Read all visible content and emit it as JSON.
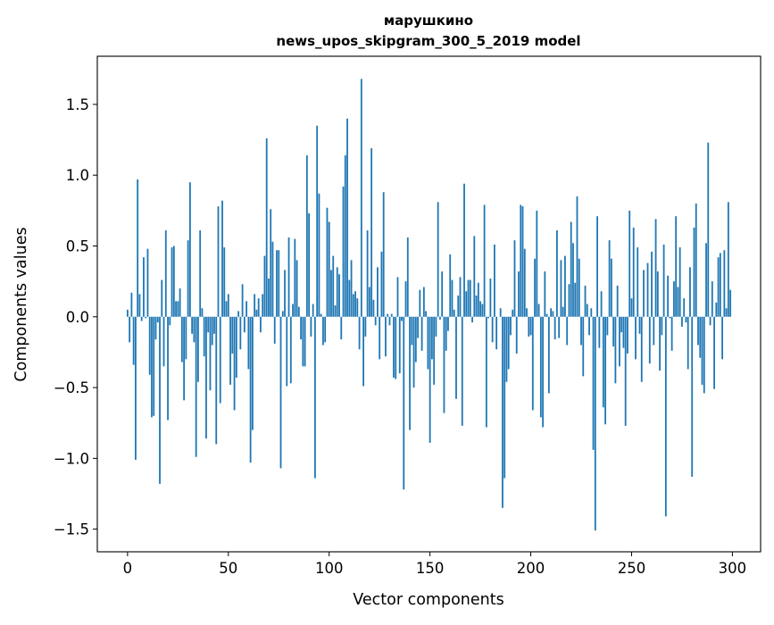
{
  "chart_data": {
    "type": "bar",
    "title": [
      "марушкино",
      "news_upos_skipgram_300_5_2019 model"
    ],
    "xlabel": "Vector components",
    "ylabel": "Components values",
    "xlim": [
      -15,
      314
    ],
    "ylim": [
      -1.66,
      1.84
    ],
    "xticks": [
      0,
      50,
      100,
      150,
      200,
      250,
      300
    ],
    "yticks": [
      -1.5,
      -1.0,
      -0.5,
      0.0,
      0.5,
      1.0,
      1.5
    ],
    "xtick_labels": [
      "0",
      "50",
      "100",
      "150",
      "200",
      "250",
      "300"
    ],
    "ytick_labels": [
      "−1.5",
      "−1.0",
      "−0.5",
      "0.0",
      "0.5",
      "1.0",
      "1.5"
    ],
    "grid": false,
    "bar_color": "#1f77b4",
    "values": [
      0.05,
      -0.18,
      0.17,
      -0.34,
      -1.01,
      0.97,
      0.16,
      -0.03,
      0.42,
      -0.01,
      0.48,
      -0.41,
      -0.71,
      -0.7,
      -0.16,
      -0.04,
      -1.18,
      0.26,
      -0.35,
      0.61,
      -0.73,
      -0.06,
      0.49,
      0.5,
      0.11,
      0.11,
      0.2,
      -0.32,
      -0.59,
      -0.3,
      0.54,
      0.95,
      -0.12,
      -0.18,
      -0.99,
      -0.46,
      0.61,
      0.06,
      -0.28,
      -0.86,
      -0.11,
      -0.52,
      -0.2,
      -0.12,
      -0.9,
      0.78,
      -0.61,
      0.82,
      0.49,
      0.11,
      0.16,
      -0.48,
      -0.26,
      -0.66,
      -0.43,
      0.04,
      -0.23,
      0.23,
      -0.11,
      0.11,
      -0.37,
      -1.03,
      -0.8,
      0.16,
      0.05,
      0.13,
      -0.11,
      0.16,
      0.43,
      1.26,
      0.27,
      0.76,
      0.53,
      -0.19,
      0.47,
      0.47,
      -1.07,
      0.04,
      0.33,
      -0.49,
      0.56,
      -0.47,
      0.09,
      0.55,
      0.4,
      0.07,
      -0.16,
      -0.35,
      -0.35,
      1.14,
      0.73,
      -0.14,
      0.09,
      -1.14,
      1.35,
      0.87,
      0.02,
      -0.2,
      -0.18,
      0.77,
      0.67,
      0.33,
      0.43,
      0.08,
      0.35,
      0.3,
      -0.16,
      0.92,
      1.14,
      1.4,
      0.26,
      0.4,
      0.16,
      0.18,
      0.13,
      -0.23,
      1.68,
      -0.49,
      -0.14,
      0.61,
      0.21,
      1.19,
      0.12,
      -0.06,
      0.35,
      -0.3,
      0.46,
      0.88,
      -0.28,
      0.02,
      -0.06,
      0.02,
      -0.43,
      -0.44,
      0.28,
      -0.4,
      -0.03,
      -1.22,
      0.25,
      0.56,
      -0.8,
      -0.2,
      -0.5,
      -0.32,
      -0.15,
      0.19,
      -0.24,
      0.21,
      0.04,
      -0.37,
      -0.89,
      -0.3,
      -0.48,
      -0.14,
      0.81,
      -0.02,
      0.32,
      -0.68,
      -0.24,
      -0.1,
      0.44,
      0.26,
      0.05,
      -0.58,
      0.15,
      0.28,
      -0.77,
      0.94,
      0.18,
      0.26,
      0.26,
      -0.04,
      0.57,
      0.15,
      0.24,
      0.11,
      0.09,
      0.79,
      -0.78,
      -0.01,
      0.27,
      -0.18,
      0.51,
      -0.23,
      0.0,
      0.06,
      -1.35,
      -1.14,
      -0.46,
      -0.37,
      -0.13,
      0.05,
      0.54,
      -0.26,
      0.32,
      0.79,
      0.78,
      0.48,
      0.06,
      -0.14,
      -0.13,
      -0.66,
      0.41,
      0.75,
      0.09,
      -0.71,
      -0.78,
      0.32,
      0.02,
      -0.54,
      0.06,
      0.04,
      -0.16,
      0.61,
      -0.15,
      0.4,
      0.07,
      0.43,
      -0.2,
      0.23,
      0.67,
      0.52,
      0.24,
      0.85,
      0.41,
      -0.2,
      -0.42,
      0.22,
      0.09,
      -0.13,
      0.06,
      -0.94,
      -1.51,
      0.71,
      -0.22,
      0.18,
      -0.64,
      -0.76,
      -0.13,
      0.54,
      0.41,
      -0.21,
      -0.47,
      0.22,
      -0.35,
      -0.11,
      -0.22,
      -0.77,
      -0.26,
      0.75,
      0.13,
      0.63,
      -0.3,
      0.49,
      -0.12,
      -0.46,
      0.33,
      0.0,
      0.38,
      -0.33,
      0.46,
      -0.2,
      0.69,
      0.32,
      -0.38,
      -0.13,
      0.51,
      -1.41,
      0.29,
      -0.01,
      -0.24,
      0.25,
      0.71,
      0.21,
      0.49,
      -0.07,
      0.13,
      -0.04,
      -0.37,
      0.35,
      -1.13,
      0.63,
      0.8,
      -0.2,
      -0.29,
      -0.48,
      -0.54,
      0.52,
      1.23,
      -0.06,
      0.25,
      -0.51,
      0.1,
      0.42,
      0.45,
      -0.3,
      0.47,
      0.06,
      0.81,
      0.19
    ]
  }
}
